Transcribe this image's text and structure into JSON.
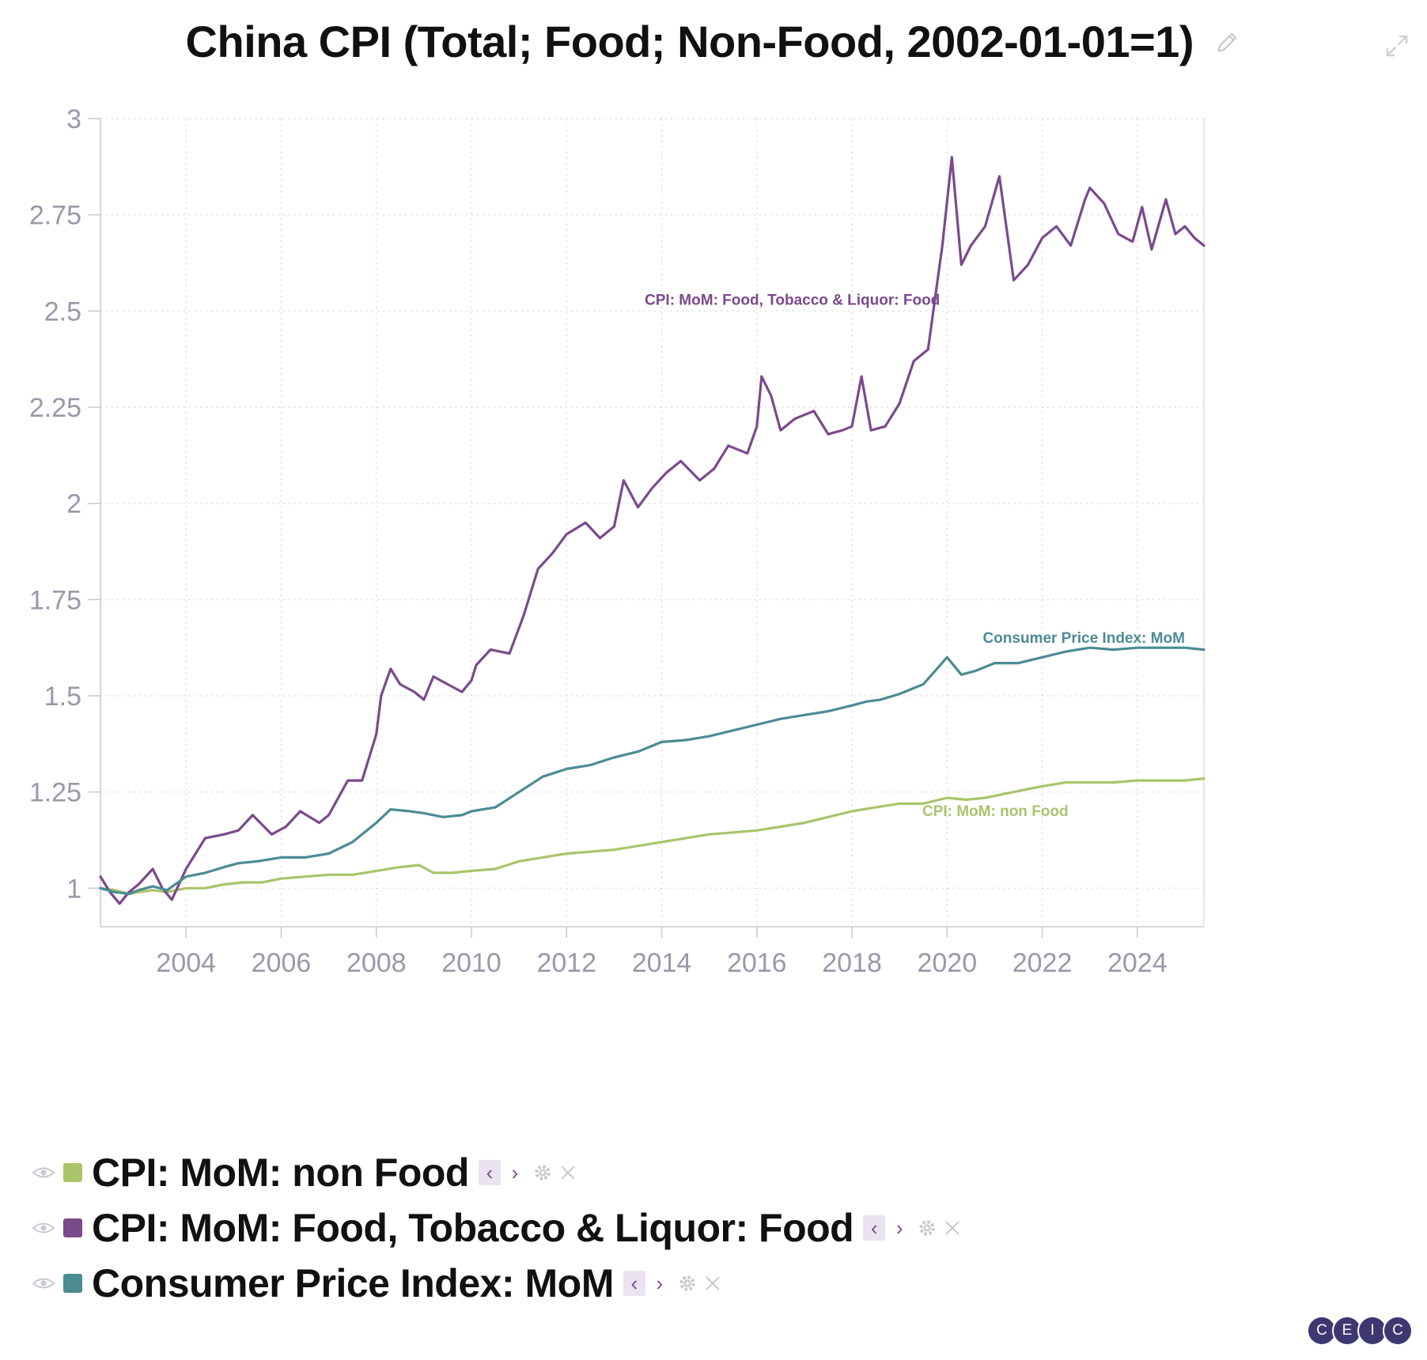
{
  "chart_title": "China CPI (Total; Food; Non-Food, 2002-01-01=1)",
  "icons": {
    "edit": "pencil-icon",
    "expand": "expand-icon",
    "visibility": "eye-icon",
    "settings": "gear-icon",
    "remove": "close-icon",
    "prev": "chevron-left-icon",
    "next": "chevron-right-icon"
  },
  "controls": {
    "prev_glyph": "‹",
    "next_glyph": "›"
  },
  "logo": {
    "letters": [
      "C",
      "E",
      "I",
      "C"
    ],
    "color": "#3e3870"
  },
  "legend": [
    {
      "label": "CPI: MoM: non Food",
      "color": "#a9c46b"
    },
    {
      "label": "CPI: MoM: Food, Tobacco & Liquor: Food",
      "color": "#7b4a8c"
    },
    {
      "label": "Consumer Price Index: MoM",
      "color": "#4b8c93"
    }
  ],
  "chart_data": {
    "type": "line",
    "title": "China CPI (Total; Food; Non-Food, 2002-01-01=1)",
    "xlabel": "",
    "ylabel": "",
    "xlim": [
      2002.2,
      2025.4
    ],
    "ylim": [
      0.9,
      3
    ],
    "x_ticks": [
      2004,
      2006,
      2008,
      2010,
      2012,
      2014,
      2016,
      2018,
      2020,
      2022,
      2024
    ],
    "x_tick_labels": [
      "2004",
      "2006",
      "2008",
      "2010",
      "2012",
      "2014",
      "2016",
      "2018",
      "2020",
      "2022",
      "2024"
    ],
    "y_ticks": [
      1,
      1.25,
      1.5,
      1.75,
      2,
      2.25,
      2.5,
      2.75,
      3
    ],
    "y_tick_labels": [
      "1",
      "1.25",
      "1.5",
      "1.75",
      "2",
      "2.25",
      "2.5",
      "2.75",
      "3"
    ],
    "grid": true,
    "series": [
      {
        "name": "CPI: MoM: non Food",
        "color": "#a9c46b",
        "label": "CPI: MoM: non Food",
        "x": [
          2002.2,
          2002.5,
          2002.8,
          2003.0,
          2003.3,
          2003.6,
          2004.0,
          2004.4,
          2004.8,
          2005.2,
          2005.6,
          2006.0,
          2006.5,
          2007.0,
          2007.5,
          2008.0,
          2008.5,
          2008.9,
          2009.2,
          2009.6,
          2010.0,
          2010.5,
          2011.0,
          2011.5,
          2012.0,
          2012.5,
          2013.0,
          2013.5,
          2014.0,
          2014.5,
          2015.0,
          2015.5,
          2016.0,
          2016.5,
          2017.0,
          2017.5,
          2018.0,
          2018.5,
          2019.0,
          2019.5,
          2020.0,
          2020.4,
          2020.8,
          2021.2,
          2021.6,
          2022.0,
          2022.5,
          2023.0,
          2023.5,
          2024.0,
          2024.5,
          2025.0,
          2025.4
        ],
        "y": [
          1.0,
          0.995,
          0.985,
          0.99,
          0.995,
          0.99,
          1.0,
          1.0,
          1.01,
          1.015,
          1.015,
          1.025,
          1.03,
          1.035,
          1.035,
          1.045,
          1.055,
          1.06,
          1.04,
          1.04,
          1.045,
          1.05,
          1.07,
          1.08,
          1.09,
          1.095,
          1.1,
          1.11,
          1.12,
          1.13,
          1.14,
          1.145,
          1.15,
          1.16,
          1.17,
          1.185,
          1.2,
          1.21,
          1.22,
          1.22,
          1.235,
          1.23,
          1.235,
          1.245,
          1.255,
          1.265,
          1.275,
          1.275,
          1.275,
          1.28,
          1.28,
          1.28,
          1.285
        ]
      },
      {
        "name": "CPI: MoM: Food, Tobacco & Liquor: Food",
        "color": "#7b4a8c",
        "label": "CPI: MoM: Food, Tobacco & Liquor: Food",
        "x": [
          2002.2,
          2002.4,
          2002.6,
          2002.8,
          2003.0,
          2003.3,
          2003.5,
          2003.7,
          2004.0,
          2004.4,
          2004.8,
          2005.1,
          2005.4,
          2005.8,
          2006.1,
          2006.4,
          2006.8,
          2007.0,
          2007.4,
          2007.7,
          2008.0,
          2008.1,
          2008.3,
          2008.5,
          2008.8,
          2009.0,
          2009.2,
          2009.5,
          2009.8,
          2010.0,
          2010.1,
          2010.4,
          2010.8,
          2011.1,
          2011.4,
          2011.7,
          2012.0,
          2012.4,
          2012.7,
          2013.0,
          2013.2,
          2013.5,
          2013.8,
          2014.1,
          2014.4,
          2014.8,
          2015.1,
          2015.4,
          2015.8,
          2016.0,
          2016.1,
          2016.3,
          2016.5,
          2016.8,
          2017.0,
          2017.2,
          2017.5,
          2017.8,
          2018.0,
          2018.2,
          2018.4,
          2018.7,
          2019.0,
          2019.3,
          2019.6,
          2019.9,
          2020.1,
          2020.3,
          2020.5,
          2020.8,
          2021.1,
          2021.4,
          2021.7,
          2022.0,
          2022.3,
          2022.6,
          2022.9,
          2023.0,
          2023.3,
          2023.6,
          2023.9,
          2024.1,
          2024.3,
          2024.6,
          2024.8,
          2025.0,
          2025.2,
          2025.4
        ],
        "y": [
          1.03,
          0.99,
          0.96,
          0.99,
          1.01,
          1.05,
          1.0,
          0.97,
          1.05,
          1.13,
          1.14,
          1.15,
          1.19,
          1.14,
          1.16,
          1.2,
          1.17,
          1.19,
          1.28,
          1.28,
          1.4,
          1.5,
          1.57,
          1.53,
          1.51,
          1.49,
          1.55,
          1.53,
          1.51,
          1.54,
          1.58,
          1.62,
          1.61,
          1.71,
          1.83,
          1.87,
          1.92,
          1.95,
          1.91,
          1.94,
          2.06,
          1.99,
          2.04,
          2.08,
          2.11,
          2.06,
          2.09,
          2.15,
          2.13,
          2.2,
          2.33,
          2.28,
          2.19,
          2.22,
          2.23,
          2.24,
          2.18,
          2.19,
          2.2,
          2.33,
          2.19,
          2.2,
          2.26,
          2.37,
          2.4,
          2.67,
          2.9,
          2.62,
          2.67,
          2.72,
          2.85,
          2.58,
          2.62,
          2.69,
          2.72,
          2.67,
          2.79,
          2.82,
          2.78,
          2.7,
          2.68,
          2.77,
          2.66,
          2.79,
          2.7,
          2.72,
          2.69,
          2.67
        ]
      },
      {
        "name": "Consumer Price Index: MoM",
        "color": "#4b8c93",
        "label": "Consumer Price Index: MoM",
        "x": [
          2002.2,
          2002.5,
          2002.8,
          2003.0,
          2003.3,
          2003.6,
          2004.0,
          2004.4,
          2004.8,
          2005.1,
          2005.5,
          2006.0,
          2006.5,
          2007.0,
          2007.5,
          2008.0,
          2008.3,
          2008.7,
          2009.0,
          2009.4,
          2009.8,
          2010.0,
          2010.5,
          2011.0,
          2011.5,
          2012.0,
          2012.5,
          2013.0,
          2013.5,
          2014.0,
          2014.5,
          2015.0,
          2015.5,
          2016.0,
          2016.5,
          2017.0,
          2017.5,
          2018.0,
          2018.3,
          2018.6,
          2019.0,
          2019.5,
          2020.0,
          2020.3,
          2020.6,
          2021.0,
          2021.5,
          2022.0,
          2022.5,
          2023.0,
          2023.5,
          2024.0,
          2024.5,
          2025.0,
          2025.4
        ],
        "y": [
          1.0,
          0.99,
          0.985,
          0.995,
          1.005,
          0.995,
          1.03,
          1.04,
          1.055,
          1.065,
          1.07,
          1.08,
          1.08,
          1.09,
          1.12,
          1.17,
          1.205,
          1.2,
          1.195,
          1.185,
          1.19,
          1.2,
          1.21,
          1.25,
          1.29,
          1.31,
          1.32,
          1.34,
          1.355,
          1.38,
          1.385,
          1.395,
          1.41,
          1.425,
          1.44,
          1.45,
          1.46,
          1.475,
          1.485,
          1.49,
          1.505,
          1.53,
          1.6,
          1.555,
          1.565,
          1.585,
          1.585,
          1.6,
          1.615,
          1.625,
          1.62,
          1.625,
          1.625,
          1.625,
          1.62
        ]
      }
    ],
    "annotations": [
      {
        "text": "CPI: MoM: Food, Tobacco & Liquor: Food",
        "series": 1,
        "color": "#7b4a8c"
      },
      {
        "text": "Consumer Price Index: MoM",
        "series": 2,
        "color": "#4b8c93"
      },
      {
        "text": "CPI: MoM: non Food",
        "series": 0,
        "color": "#a9c46b"
      }
    ]
  }
}
